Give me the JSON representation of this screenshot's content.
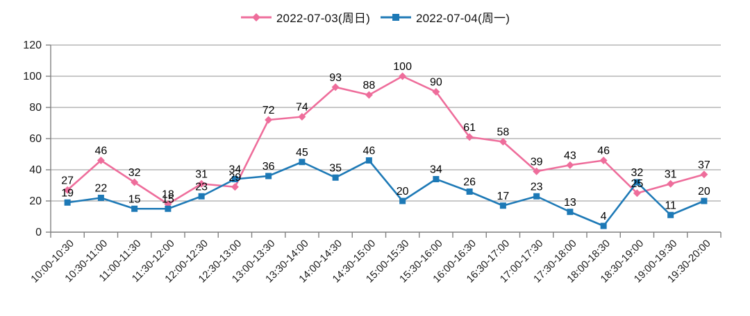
{
  "chart_data": {
    "type": "line",
    "categories": [
      "10:00-10:30",
      "10:30-11:00",
      "11:00-11:30",
      "11:30-12:00",
      "12:00-12:30",
      "12:30-13:00",
      "13:00-13:30",
      "13:30-14:00",
      "14:00-14:30",
      "14:30-15:00",
      "15:00-15:30",
      "15:30-16:00",
      "16:00-16:30",
      "16:30-17:00",
      "17:00-17:30",
      "17:30-18:00",
      "18:00-18:30",
      "18:30-19:00",
      "19:00-19:30",
      "19:30-20:00"
    ],
    "series": [
      {
        "name": "2022-07-03(周日)",
        "marker": "diamond",
        "color": "#ee6d9b",
        "values": [
          27,
          46,
          32,
          18,
          31,
          29,
          72,
          74,
          93,
          88,
          100,
          90,
          61,
          58,
          39,
          43,
          46,
          25,
          31,
          37
        ]
      },
      {
        "name": "2022-07-04(周一)",
        "marker": "square",
        "color": "#1d79b6",
        "values": [
          19,
          22,
          15,
          15,
          23,
          34,
          36,
          45,
          35,
          46,
          20,
          34,
          26,
          17,
          23,
          13,
          4,
          32,
          11,
          20
        ]
      }
    ],
    "ylim": [
      0,
      120
    ],
    "y_ticks": [
      0,
      20,
      40,
      60,
      80,
      100,
      120
    ],
    "grid": true,
    "data_labels": true,
    "legend_position": "top"
  },
  "colors": {
    "gridline": "#a8a8a8",
    "axis": "#7f7f7f",
    "label_text": "#1a1a1a"
  }
}
